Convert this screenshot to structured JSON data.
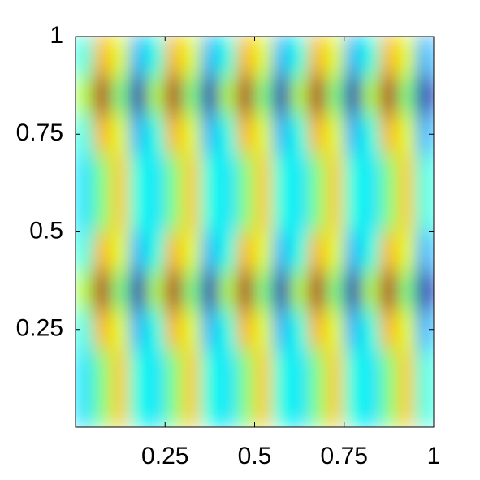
{
  "chart_data": {
    "type": "heatmap",
    "xlim": [
      0,
      1
    ],
    "ylim": [
      0,
      1
    ],
    "clim": [
      -1,
      1
    ],
    "xticks": [
      0.25,
      0.5,
      0.75,
      1
    ],
    "yticks": [
      0.25,
      0.5,
      0.75,
      1
    ],
    "z": [
      [
        -0.3,
        0.0,
        0.35,
        -0.2,
        -0.3,
        0.0,
        0.35,
        -0.2,
        -0.3,
        0.0,
        0.35,
        -0.2,
        -0.3,
        0.0,
        0.35,
        -0.2,
        -0.3,
        0.0,
        0.35,
        -0.2
      ],
      [
        -0.3,
        0.0,
        0.35,
        -0.2,
        -0.3,
        0.0,
        0.35,
        -0.2,
        -0.3,
        0.0,
        0.35,
        -0.2,
        -0.3,
        0.0,
        0.35,
        -0.2,
        -0.3,
        0.0,
        0.35,
        -0.2
      ],
      [
        -0.2,
        0.4,
        0.2,
        -0.4,
        -0.2,
        0.4,
        0.2,
        -0.4,
        -0.2,
        0.4,
        0.2,
        -0.4,
        -0.2,
        0.4,
        0.2,
        -0.4,
        -0.2,
        0.4,
        0.2,
        -0.4
      ],
      [
        0.1,
        0.9,
        0.0,
        -0.9,
        0.1,
        0.9,
        0.0,
        -0.9,
        0.1,
        0.9,
        0.0,
        -0.9,
        0.1,
        0.9,
        0.0,
        -0.9,
        0.1,
        0.9,
        0.0,
        -0.9
      ],
      [
        -0.2,
        0.4,
        0.2,
        -0.4,
        -0.2,
        0.4,
        0.2,
        -0.4,
        -0.2,
        0.4,
        0.2,
        -0.4,
        -0.2,
        0.4,
        0.2,
        -0.4,
        -0.2,
        0.4,
        0.2,
        -0.4
      ],
      [
        -0.3,
        0.0,
        0.35,
        -0.2,
        -0.3,
        0.0,
        0.35,
        -0.2,
        -0.3,
        0.0,
        0.35,
        -0.2,
        -0.3,
        0.0,
        0.35,
        -0.2,
        -0.3,
        0.0,
        0.35,
        -0.2
      ],
      [
        -0.3,
        0.0,
        0.35,
        -0.2,
        -0.3,
        0.0,
        0.35,
        -0.2,
        -0.3,
        0.0,
        0.35,
        -0.2,
        -0.3,
        0.0,
        0.35,
        -0.2,
        -0.3,
        0.0,
        0.35,
        -0.2
      ],
      [
        -0.2,
        0.4,
        0.2,
        -0.4,
        -0.2,
        0.4,
        0.2,
        -0.4,
        -0.2,
        0.4,
        0.2,
        -0.4,
        -0.2,
        0.4,
        0.2,
        -0.4,
        -0.2,
        0.4,
        0.2,
        -0.4
      ],
      [
        0.1,
        0.9,
        0.0,
        -0.9,
        0.1,
        0.9,
        0.0,
        -0.9,
        0.1,
        0.9,
        0.0,
        -0.9,
        0.1,
        0.9,
        0.0,
        -0.9,
        0.1,
        0.9,
        0.0,
        -0.9
      ],
      [
        -0.2,
        0.4,
        0.2,
        -0.4,
        -0.2,
        0.4,
        0.2,
        -0.4,
        -0.2,
        0.4,
        0.2,
        -0.4,
        -0.2,
        0.4,
        0.2,
        -0.4,
        -0.2,
        0.4,
        0.2,
        -0.4
      ]
    ]
  }
}
